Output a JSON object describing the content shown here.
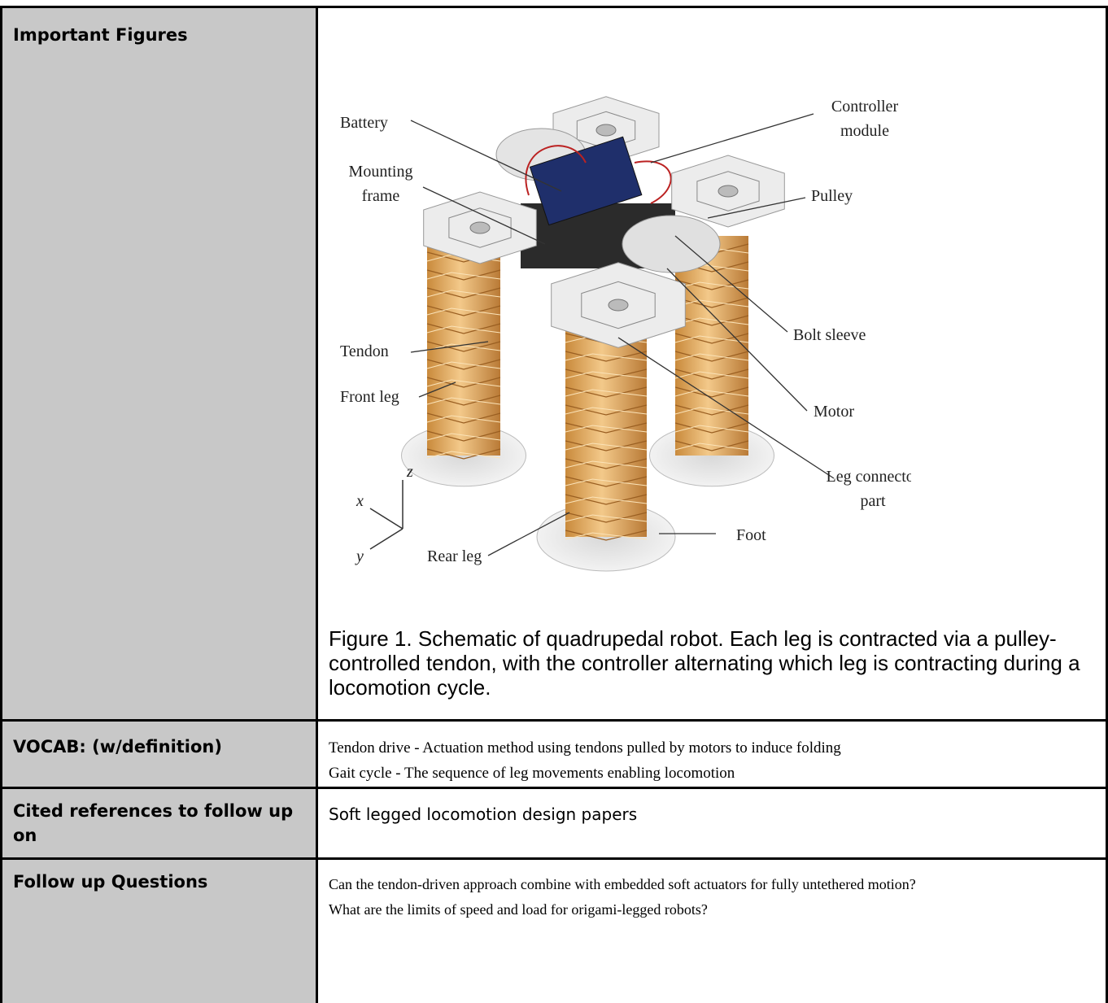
{
  "table": {
    "rows": [
      {
        "label": "Important Figures",
        "figure": {
          "callouts": [
            {
              "lines": [
                "Battery"
              ]
            },
            {
              "lines": [
                "Controller",
                "module"
              ]
            },
            {
              "lines": [
                "Mounting",
                "frame"
              ]
            },
            {
              "lines": [
                "Pulley"
              ]
            },
            {
              "lines": [
                "Bolt sleeve"
              ]
            },
            {
              "lines": [
                "Tendon"
              ]
            },
            {
              "lines": [
                "Front leg"
              ]
            },
            {
              "lines": [
                "Motor"
              ]
            },
            {
              "lines": [
                "Leg connector",
                "part"
              ]
            },
            {
              "lines": [
                "Foot"
              ]
            },
            {
              "lines": [
                "Rear leg"
              ]
            }
          ],
          "axes": [
            "x",
            "y",
            "z"
          ]
        },
        "caption": "Figure 1. Schematic of quadrupedal robot. Each leg is contracted via a pulley-controlled tendon, with the controller alternating which leg is contracting during a locomotion cycle."
      },
      {
        "label": "VOCAB: (w/definition)",
        "lines": [
          "Tendon drive - Actuation method using tendons pulled by motors to induce folding",
          "Gait cycle - The sequence of leg movements enabling locomotion"
        ]
      },
      {
        "label": "Cited references to follow up on",
        "lines": [
          "Soft legged locomotion design papers"
        ]
      },
      {
        "label": "Follow up Questions",
        "lines": [
          "Can the tendon-driven approach combine with embedded soft actuators for fully untethered motion?",
          "What are the limits of speed and load for origami-legged robots?"
        ]
      }
    ]
  }
}
